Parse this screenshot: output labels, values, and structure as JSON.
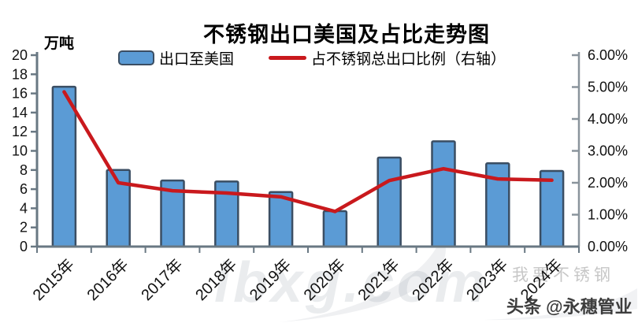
{
  "page": {
    "background": "#ffffff"
  },
  "chart": {
    "title": "不锈钢出口美国及占比走势图",
    "y_unit": "万吨",
    "legend": {
      "bar_label": "出口至美国",
      "line_label": "占不锈钢总出口比例（右轴）"
    }
  },
  "watermarks": {
    "site": "lbxg.com",
    "brand_light": "我要不锈钢",
    "byline": "头条 @永穗管业"
  },
  "chart_data": {
    "type": "combo",
    "title": "不锈钢出口美国及占比走势图",
    "grid": false,
    "legend_position": "top",
    "categories": [
      "2015年",
      "2016年",
      "2017年",
      "2018年",
      "2019年",
      "2020年",
      "2021年",
      "2022年",
      "2023年",
      "2024年"
    ],
    "series": [
      {
        "name": "出口至美国",
        "type": "bar",
        "axis": "left",
        "unit": "万吨",
        "values": [
          16.7,
          8.0,
          6.9,
          6.8,
          5.7,
          3.7,
          9.3,
          11.0,
          8.7,
          7.9
        ],
        "fill_color": "#5b9bd5",
        "border_color": "#3b4e63"
      },
      {
        "name": "占不锈钢总出口比例（右轴）",
        "type": "line",
        "axis": "right",
        "unit": "%",
        "values": [
          4.85,
          2.0,
          1.75,
          1.68,
          1.56,
          1.1,
          2.07,
          2.44,
          2.12,
          2.08
        ],
        "color": "#c9191d"
      }
    ],
    "left_axis": {
      "label": "万吨",
      "min": 0,
      "max": 20,
      "step": 2,
      "tick_labels": [
        "20",
        "18",
        "16",
        "14",
        "12",
        "10",
        "8",
        "6",
        "4",
        "2",
        "0"
      ]
    },
    "right_axis": {
      "min": 0,
      "max": 6,
      "step": 1,
      "format": "percent",
      "tick_labels": [
        "6.00%",
        "5.00%",
        "4.00%",
        "3.00%",
        "2.00%",
        "1.00%",
        "0.00%"
      ]
    },
    "axis_color": "#697883",
    "right_axis_color": "#8a949c"
  }
}
